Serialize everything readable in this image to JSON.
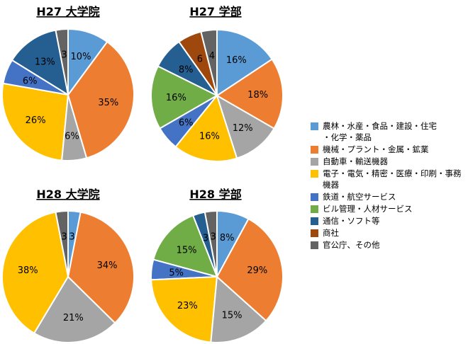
{
  "legend": [
    {
      "label": "農林・水産・食品・建設・住宅\n・化学・薬品",
      "color": "#5B9BD5"
    },
    {
      "label": "機械・プラント・金属・鉱業",
      "color": "#ED7D31"
    },
    {
      "label": "自動車・輸送機器",
      "color": "#A5A5A5"
    },
    {
      "label": "電子・電気・精密・医療・印刷・事務機器",
      "color": "#FFC000"
    },
    {
      "label": "鉄道・航空サービス",
      "color": "#4472C4"
    },
    {
      "label": "ビル管理・人材サービス",
      "color": "#70AD47"
    },
    {
      "label": "通信・ソフト等",
      "color": "#255E91"
    },
    {
      "label": "商社",
      "color": "#9E480E"
    },
    {
      "label": "官公庁、その他",
      "color": "#636363"
    }
  ],
  "chart_data": [
    {
      "type": "pie",
      "title": "H27 大学院",
      "slices": [
        {
          "category": 0,
          "value": 10,
          "label": "10%"
        },
        {
          "category": 1,
          "value": 35,
          "label": "35%"
        },
        {
          "category": 2,
          "value": 6,
          "label": "6%"
        },
        {
          "category": 3,
          "value": 26,
          "label": "26%"
        },
        {
          "category": 4,
          "value": 6,
          "label": "6%"
        },
        {
          "category": 6,
          "value": 13,
          "label": "13%"
        },
        {
          "category": 8,
          "value": 3,
          "label": "3"
        }
      ]
    },
    {
      "type": "pie",
      "title": "H27 学部",
      "slices": [
        {
          "category": 0,
          "value": 16,
          "label": "16%"
        },
        {
          "category": 1,
          "value": 18,
          "label": "18%"
        },
        {
          "category": 2,
          "value": 12,
          "label": "12%"
        },
        {
          "category": 3,
          "value": 16,
          "label": "16%"
        },
        {
          "category": 4,
          "value": 6,
          "label": "6%"
        },
        {
          "category": 5,
          "value": 16,
          "label": "16%"
        },
        {
          "category": 6,
          "value": 8,
          "label": "8%"
        },
        {
          "category": 7,
          "value": 6,
          "label": "6"
        },
        {
          "category": 8,
          "value": 4,
          "label": "4"
        }
      ]
    },
    {
      "type": "pie",
      "title": "H28 大学院",
      "slices": [
        {
          "category": 0,
          "value": 3,
          "label": "3"
        },
        {
          "category": 1,
          "value": 34,
          "label": "34%"
        },
        {
          "category": 2,
          "value": 21,
          "label": "21%"
        },
        {
          "category": 3,
          "value": 38,
          "label": "38%"
        },
        {
          "category": 8,
          "value": 3,
          "label": "3"
        }
      ]
    },
    {
      "type": "pie",
      "title": "H28 学部",
      "slices": [
        {
          "category": 0,
          "value": 8,
          "label": "8%"
        },
        {
          "category": 1,
          "value": 29,
          "label": "29%"
        },
        {
          "category": 2,
          "value": 15,
          "label": "15%"
        },
        {
          "category": 3,
          "value": 23,
          "label": "23%"
        },
        {
          "category": 4,
          "value": 5,
          "label": "5%"
        },
        {
          "category": 5,
          "value": 15,
          "label": "15%"
        },
        {
          "category": 6,
          "value": 3,
          "label": "3"
        },
        {
          "category": 8,
          "value": 3,
          "label": "3"
        }
      ]
    }
  ]
}
